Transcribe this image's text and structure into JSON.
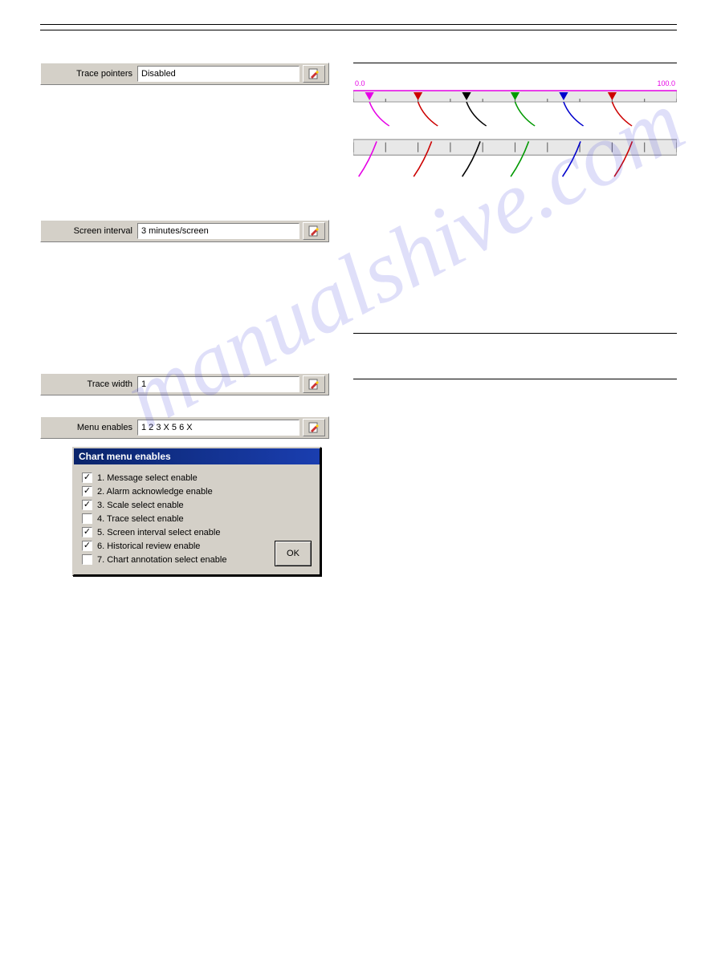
{
  "watermark_text": "manualshive.com",
  "fields": {
    "trace_pointers": {
      "label": "Trace pointers",
      "value": "Disabled"
    },
    "screen_interval": {
      "label": "Screen interval",
      "value": "3 minutes/screen"
    },
    "trace_width": {
      "label": "Trace width",
      "value": "1"
    },
    "menu_enables": {
      "label": "Menu enables",
      "value": "1 2 3 X 5 6 X"
    }
  },
  "scale_strip_enabled": {
    "min_label": "0.0",
    "max_label": "100.0",
    "label_color": "#e600e6",
    "bar_color": "#e8e8e8",
    "pointer_line_color": "#e600e6",
    "pointers": [
      {
        "x_frac": 0.05,
        "color": "#e600e6"
      },
      {
        "x_frac": 0.2,
        "color": "#cc0000"
      },
      {
        "x_frac": 0.35,
        "color": "#000000"
      },
      {
        "x_frac": 0.5,
        "color": "#009900"
      },
      {
        "x_frac": 0.65,
        "color": "#0000cc"
      },
      {
        "x_frac": 0.8,
        "color": "#cc0000"
      }
    ]
  },
  "scale_strip_disabled": {
    "min_label": "0.0",
    "max_label": "100.0",
    "label_color": "#e600e6",
    "bar_color": "#e8e8e8",
    "traces": [
      {
        "x_frac": 0.05,
        "color": "#e600e6"
      },
      {
        "x_frac": 0.22,
        "color": "#cc0000"
      },
      {
        "x_frac": 0.37,
        "color": "#000000"
      },
      {
        "x_frac": 0.52,
        "color": "#009900"
      },
      {
        "x_frac": 0.68,
        "color": "#0000cc"
      },
      {
        "x_frac": 0.84,
        "color": "#cc0000"
      }
    ]
  },
  "dialog": {
    "title": "Chart menu enables",
    "ok_label": "OK",
    "items": [
      {
        "checked": true,
        "label": "1. Message select enable"
      },
      {
        "checked": true,
        "label": "2. Alarm acknowledge enable"
      },
      {
        "checked": true,
        "label": "3. Scale select enable"
      },
      {
        "checked": false,
        "label": "4. Trace select enable"
      },
      {
        "checked": true,
        "label": "5. Screen interval select enable"
      },
      {
        "checked": true,
        "label": "6. Historical review enable"
      },
      {
        "checked": false,
        "label": "7. Chart annotation select enable"
      }
    ]
  }
}
